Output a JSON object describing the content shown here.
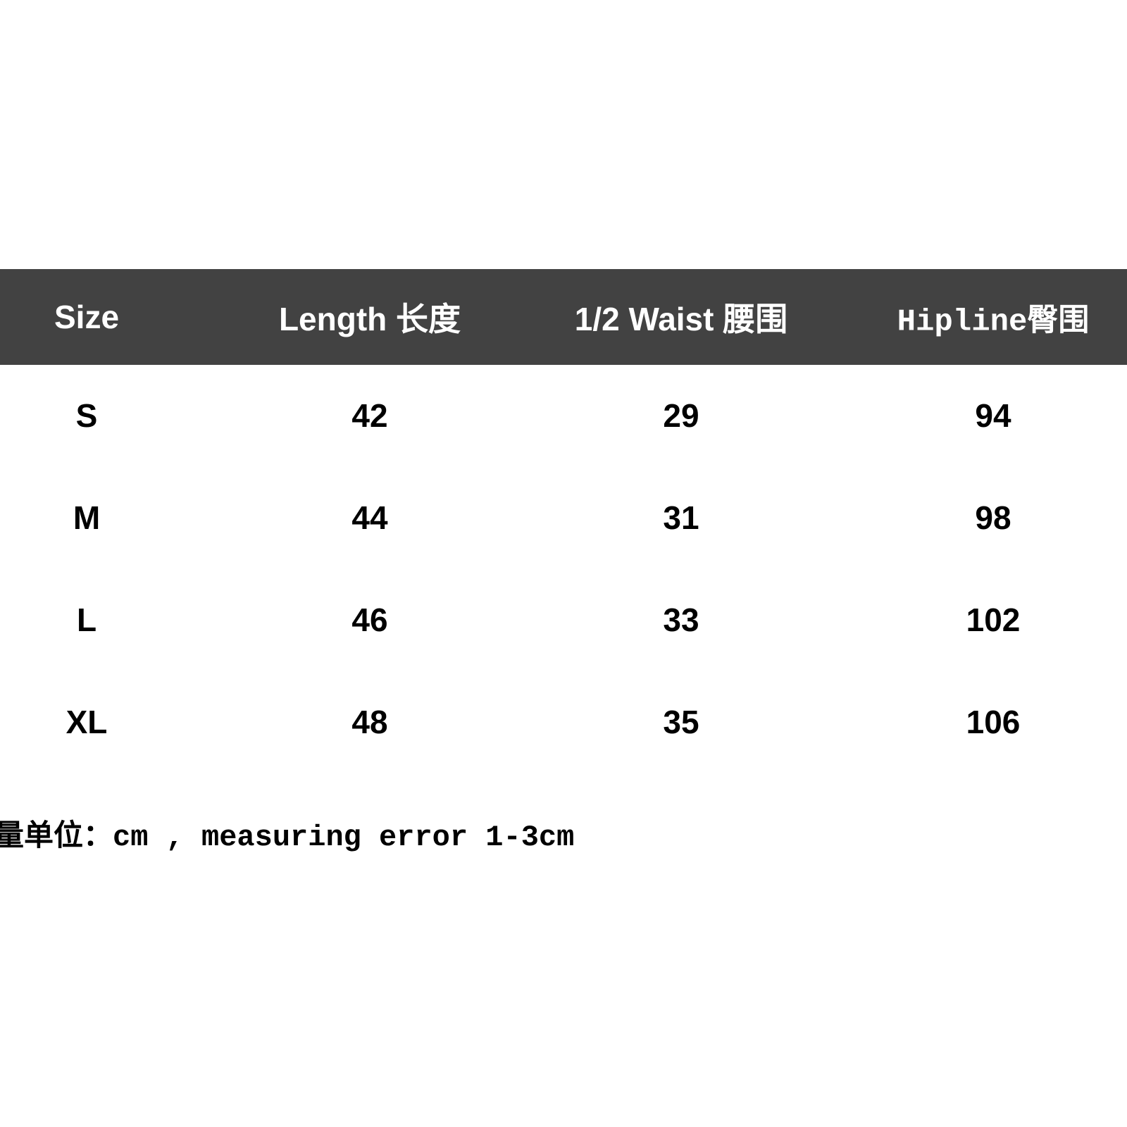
{
  "table": {
    "headers": [
      "Size",
      "Length 长度",
      "1/2 Waist 腰围",
      "Hipline臀围"
    ],
    "rows": [
      [
        "S",
        "42",
        "29",
        "94"
      ],
      [
        "M",
        "44",
        "31",
        "98"
      ],
      [
        "L",
        "46",
        "33",
        "102"
      ],
      [
        "XL",
        "48",
        "35",
        "106"
      ]
    ]
  },
  "note": "量单位：cm , measuring error 1-3cm",
  "colors": {
    "header_bg": "#424242",
    "header_text": "#ffffff",
    "body_text": "#000000"
  }
}
